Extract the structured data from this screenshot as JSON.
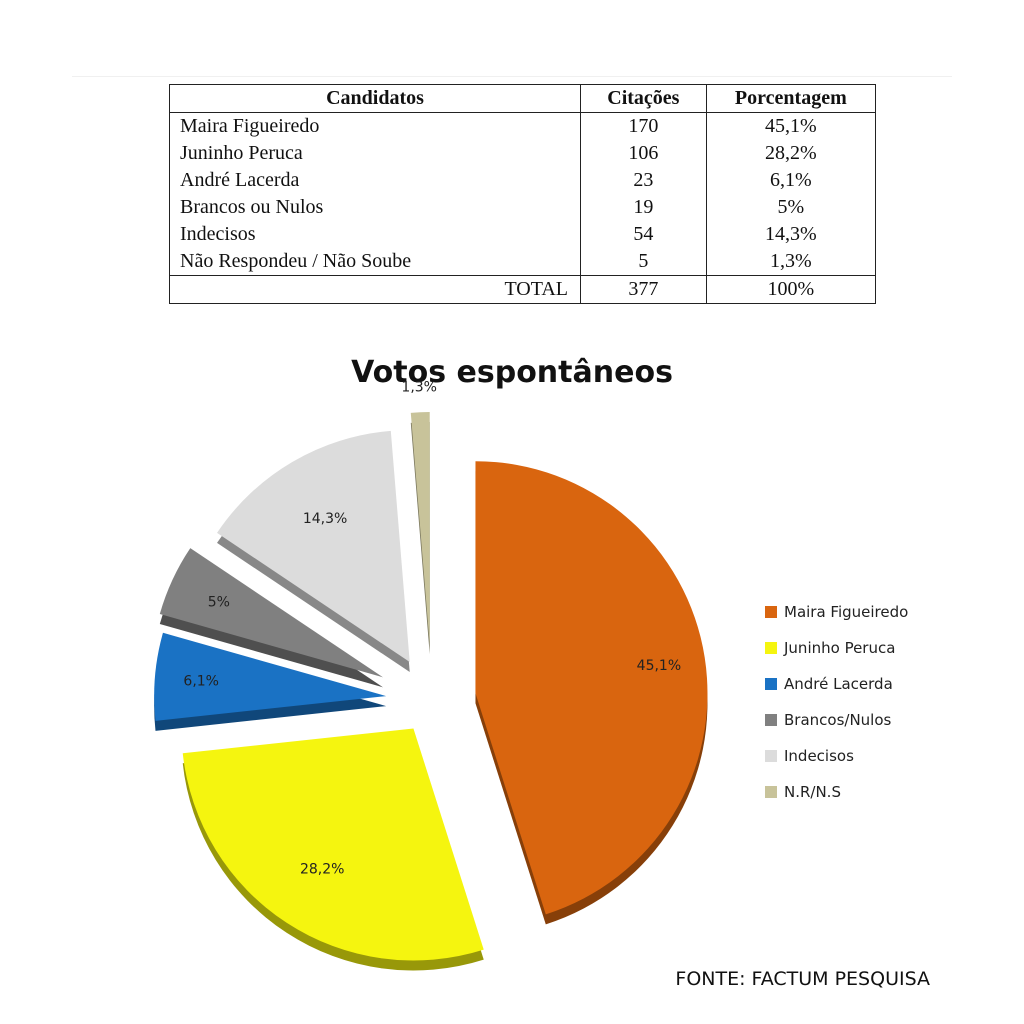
{
  "table": {
    "headers": [
      "Candidatos",
      "Citações",
      "Porcentagem"
    ],
    "rows": [
      {
        "name": "Maira Figueiredo",
        "citations": "170",
        "percent": "45,1%"
      },
      {
        "name": "Juninho Peruca",
        "citations": "106",
        "percent": "28,2%"
      },
      {
        "name": "André Lacerda",
        "citations": "23",
        "percent": "6,1%"
      },
      {
        "name": "Brancos ou Nulos",
        "citations": "19",
        "percent": "5%"
      },
      {
        "name": "Indecisos",
        "citations": "54",
        "percent": "14,3%"
      },
      {
        "name": "Não Respondeu / Não Soube",
        "citations": "5",
        "percent": "1,3%"
      }
    ],
    "total": {
      "label": "TOTAL",
      "citations": "377",
      "percent": "100%"
    }
  },
  "chart_data": {
    "type": "pie",
    "title": "Votos espontâneos",
    "legend_position": "right",
    "categories": [
      "Maira Figueiredo",
      "Juninho Peruca",
      "André Lacerda",
      "Brancos/Nulos",
      "Indecisos",
      "N.R/N.S"
    ],
    "values": [
      45.1,
      28.2,
      6.1,
      5,
      14.3,
      1.3
    ],
    "data_labels": [
      "45,1%",
      "28,2%",
      "6,1%",
      "5%",
      "14,3%",
      "1,3%"
    ],
    "colors": [
      "#d9650f",
      "#f5f50f",
      "#1a72c4",
      "#808080",
      "#dcdcdc",
      "#c8c39a"
    ]
  },
  "source": "FONTE: FACTUM PESQUISA"
}
